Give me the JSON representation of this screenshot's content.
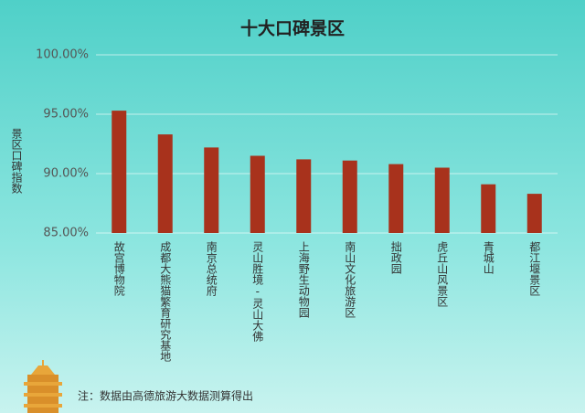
{
  "chart_data": {
    "type": "bar",
    "title": "十大口碑景区",
    "y_label": "景区口碑指数",
    "categories": [
      "故宫博物院",
      "成都大熊猫繁育研究基地",
      "南京总统府",
      "灵山胜境-灵山大佛",
      "上海野生动物园",
      "南山文化旅游区",
      "拙政园",
      "虎丘山风景区",
      "青城山",
      "都江堰景区"
    ],
    "values": [
      95.3,
      93.3,
      92.2,
      91.5,
      91.2,
      91.1,
      90.8,
      90.5,
      89.1,
      88.3
    ],
    "color": "#a8321c",
    "ylim": [
      85,
      100
    ],
    "yticks": [
      {
        "value": 85,
        "label": "85.00%"
      },
      {
        "value": 90,
        "label": "90.00%"
      },
      {
        "value": 95,
        "label": "95.00%"
      },
      {
        "value": 100,
        "label": "100.00%"
      }
    ],
    "grid": true,
    "note": "注：数据由高德旅游大数据测算得出"
  }
}
